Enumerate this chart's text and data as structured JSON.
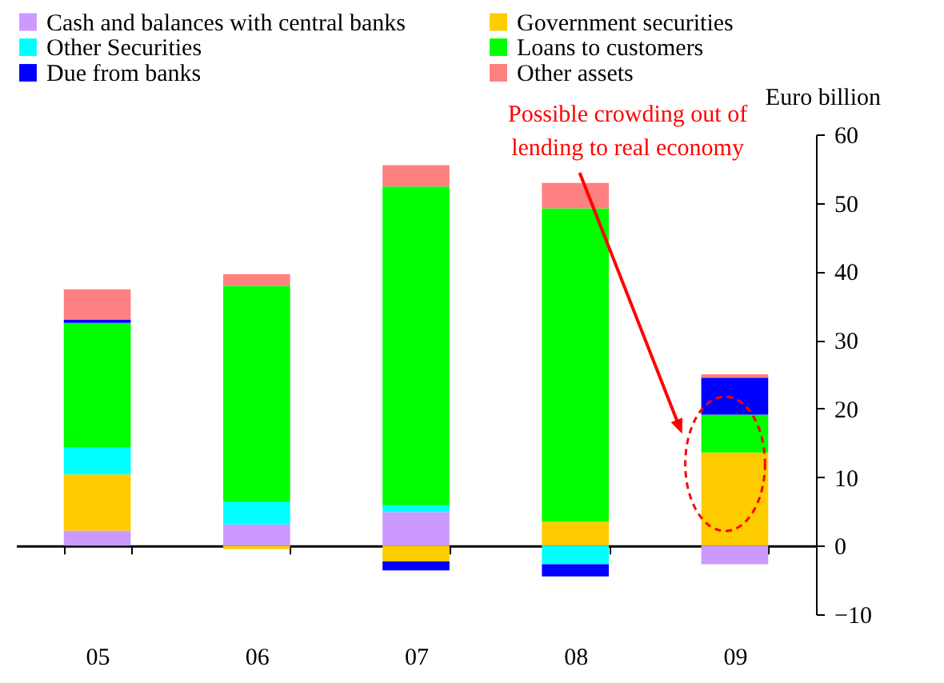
{
  "chart_data": {
    "type": "bar",
    "stacked": true,
    "ylabel": "Euro billion",
    "categories": [
      "05",
      "06",
      "07",
      "08",
      "09"
    ],
    "series": [
      {
        "name": "Cash and balances with central banks",
        "color": "#cc99ff",
        "values": [
          2.2,
          3.1,
          4.9,
          0,
          -2.7
        ]
      },
      {
        "name": "Government securities",
        "color": "#ffcc00",
        "values": [
          8.2,
          -0.5,
          -2.3,
          3.5,
          13.6
        ]
      },
      {
        "name": "Other Securities",
        "color": "#00ffff",
        "values": [
          3.9,
          3.3,
          1.0,
          -2.7,
          0
        ]
      },
      {
        "name": "Loans to customers",
        "color": "#00ff00",
        "values": [
          18.2,
          31.5,
          46.5,
          45.7,
          5.5
        ]
      },
      {
        "name": "Due from banks",
        "color": "#0000ff",
        "values": [
          0.5,
          0,
          -1.3,
          -1.8,
          5.4
        ]
      },
      {
        "name": "Other assets",
        "color": "#ff8080",
        "values": [
          4.4,
          1.7,
          3.1,
          3.7,
          0.5
        ]
      }
    ],
    "ylim": [
      -10,
      60
    ],
    "yticks": [
      -10,
      0,
      10,
      20,
      30,
      40,
      50,
      60
    ],
    "legend": "top",
    "annotations": [
      "Possible crowding out of lending to real economy"
    ]
  }
}
